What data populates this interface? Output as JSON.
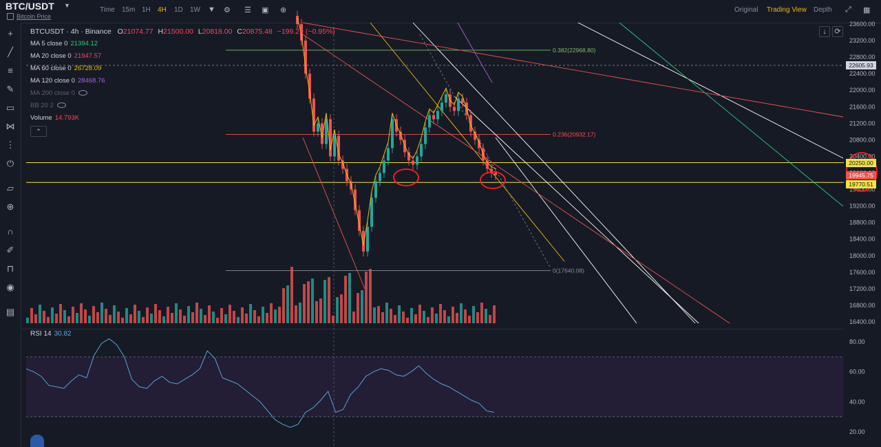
{
  "header": {
    "pair": "BTC/USDT",
    "sub_label": "Bitcoin Price",
    "timeframes": [
      "Time",
      "15m",
      "1H",
      "4H",
      "1D",
      "1W"
    ],
    "active_timeframe": "4H",
    "views": [
      "Original",
      "Trading View",
      "Depth"
    ],
    "active_view": "Trading View"
  },
  "legend": {
    "symbol_line": "BTCUSDT · 4h · Binance",
    "ohlc": {
      "o_label": "O",
      "o": "21074.77",
      "h_label": "H",
      "h": "21500.00",
      "l_label": "L",
      "l": "20818.00",
      "c_label": "C",
      "c": "20875.48",
      "change": "−199.29 (−0.95%)"
    },
    "indicators": [
      {
        "label": "MA 5 close 0",
        "value": "21394.12",
        "color": "#26d07c"
      },
      {
        "label": "MA 20 close 0",
        "value": "21947.57",
        "color": "#f6465d"
      },
      {
        "label": "MA 60 close 0",
        "value": "26728.09",
        "color": "#f0b90b"
      },
      {
        "label": "MA 120 close 0",
        "value": "28468.76",
        "color": "#a562d9"
      },
      {
        "label": "MA 200 close 0",
        "value": "",
        "color": "#5d606b"
      },
      {
        "label": "BB 20 2",
        "value": "",
        "color": "#5d606b"
      },
      {
        "label": "Volume",
        "value": "14.793K",
        "color": "#f6465d"
      }
    ],
    "rsi_label": "RSI 14",
    "rsi_value": "30.82"
  },
  "colors": {
    "up": "#26a69a",
    "down": "#ef5350",
    "bg": "#161a25",
    "grid": "#2a2e39",
    "accent": "#f0b90b"
  },
  "chart_data": {
    "type": "candlestick",
    "title": "",
    "y_ticks": [
      "23600.00",
      "23200.00",
      "22800.00",
      "22400.00",
      "22000.00",
      "21600.00",
      "21200.00",
      "20800.00",
      "20400.00",
      "20000.00",
      "19600.00",
      "19200.00",
      "18800.00",
      "18400.00",
      "18000.00",
      "17600.00",
      "17200.00",
      "16800.00",
      "16400.00"
    ],
    "rsi_ticks": [
      "80.00",
      "60.00",
      "40.00",
      "20.00"
    ],
    "price_labels": [
      {
        "text": "22605.93",
        "style": "white",
        "value": 22605.93
      },
      {
        "text": "20250.00",
        "style": "yellow",
        "value": 20250
      },
      {
        "text": "19945.75",
        "style": "red",
        "value": 19945.75
      },
      {
        "text": "19770.51",
        "style": "yellow",
        "value": 19770.51
      }
    ],
    "fib_levels": [
      {
        "label": "0.382(22968.80)",
        "value": 22968.8,
        "color": "#7fbf5f"
      },
      {
        "label": "0.236(20932.17)",
        "value": 20932.17,
        "color": "#ef5350"
      },
      {
        "label": "0(17640.08)",
        "value": 17640.08,
        "color": "#8a8d96"
      }
    ],
    "price_path": [
      23600,
      23200,
      22400,
      21800,
      21000,
      21200,
      20700,
      21300,
      20400,
      20900,
      20300,
      20100,
      19800,
      19600,
      19100,
      18600,
      18100,
      18700,
      19400,
      19800,
      20000,
      20300,
      20600,
      21300,
      21000,
      20800,
      20500,
      20300,
      20200,
      20400,
      20700,
      21100,
      21400,
      21300,
      21500,
      21700,
      21900,
      21600,
      21500,
      21800,
      21700,
      21400,
      21000,
      20800,
      20600,
      20300,
      20100,
      20000,
      19950
    ],
    "rsi_path": [
      62,
      60,
      57,
      51,
      50,
      49,
      54,
      58,
      56,
      71,
      79,
      82,
      78,
      70,
      55,
      50,
      49,
      54,
      57,
      53,
      52,
      55,
      58,
      62,
      74,
      69,
      56,
      54,
      52,
      48,
      44,
      40,
      34,
      28,
      25,
      23,
      25,
      33,
      36,
      41,
      47,
      33,
      35,
      45,
      50,
      57,
      60,
      62,
      61,
      58,
      57,
      60,
      64,
      59,
      55,
      52,
      50,
      47,
      44,
      41,
      39,
      34,
      33
    ]
  }
}
